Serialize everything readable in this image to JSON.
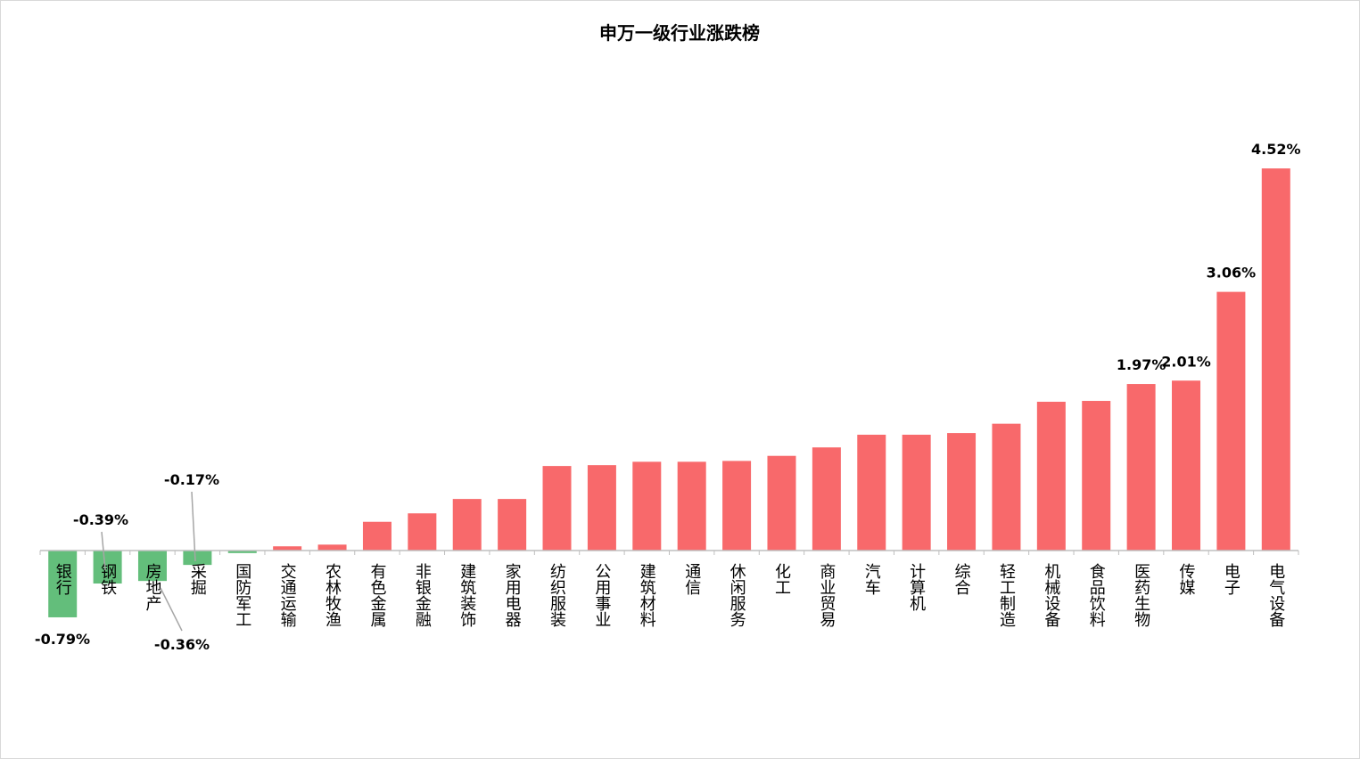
{
  "chart_data": {
    "type": "bar",
    "title": "申万一级行业涨跌榜",
    "categories": [
      "银行",
      "钢铁",
      "房地产",
      "采掘",
      "国防军工",
      "交通运输",
      "农林牧渔",
      "有色金属",
      "非银金融",
      "建筑装饰",
      "家用电器",
      "纺织服装",
      "公用事业",
      "建筑材料",
      "通信",
      "休闲服务",
      "化工",
      "商业贸易",
      "汽车",
      "计算机",
      "综合",
      "轻工制造",
      "机械设备",
      "食品饮料",
      "医药生物",
      "传媒",
      "电子",
      "电气设备"
    ],
    "values": [
      -0.79,
      -0.39,
      -0.36,
      -0.17,
      -0.03,
      0.05,
      0.07,
      0.34,
      0.44,
      0.61,
      0.61,
      1.0,
      1.01,
      1.05,
      1.05,
      1.06,
      1.12,
      1.22,
      1.37,
      1.37,
      1.39,
      1.5,
      1.76,
      1.77,
      1.97,
      2.01,
      3.06,
      4.52
    ],
    "value_labels": [
      "-0.79%",
      "-0.39%",
      "-0.36%",
      "-0.17%",
      null,
      null,
      null,
      null,
      null,
      null,
      null,
      null,
      null,
      null,
      null,
      null,
      null,
      null,
      null,
      null,
      null,
      null,
      null,
      null,
      "1.97%",
      "2.01%",
      "3.06%",
      "4.52%"
    ],
    "positive_color": "#f8696b",
    "negative_color": "#63be7b"
  }
}
